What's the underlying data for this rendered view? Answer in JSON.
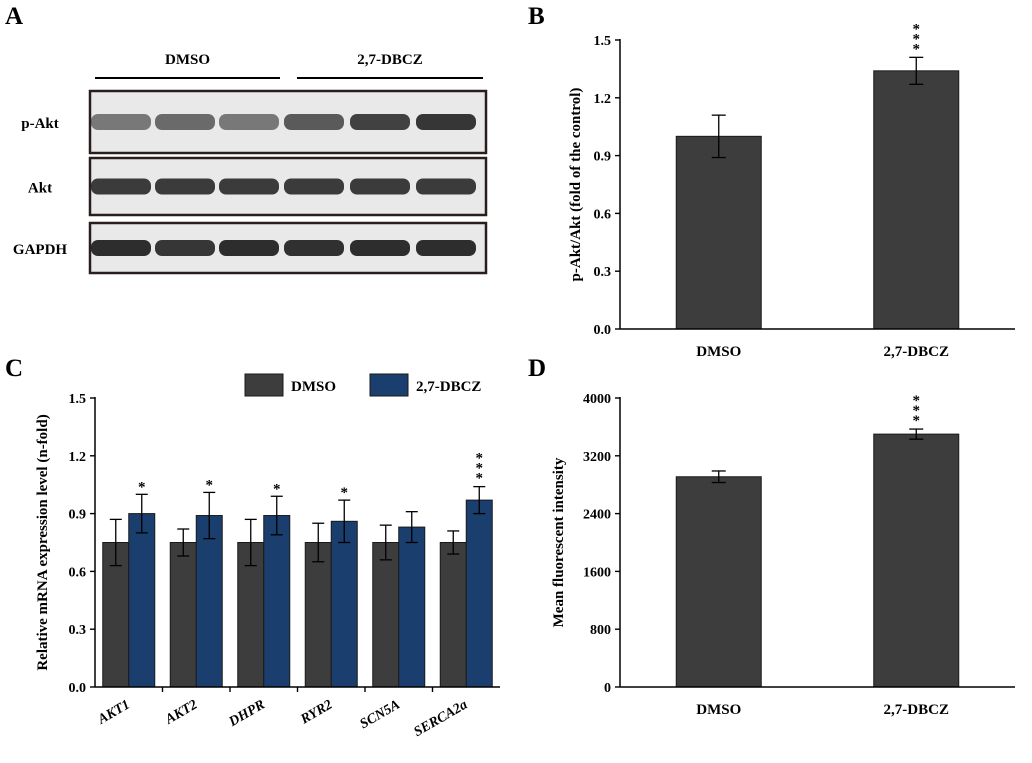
{
  "panels": {
    "A": "A",
    "B": "B",
    "C": "C",
    "D": "D"
  },
  "colors": {
    "dmso": "#3d3d3d",
    "dbcz": "#0f4470",
    "dbcz_c": "#1a3e6e",
    "blot_bg": "#e9e9e9",
    "band": "#1c1c1c"
  },
  "blot": {
    "groups": [
      "DMSO",
      "2,7-DBCZ"
    ],
    "rows": [
      {
        "label": "p-Akt",
        "intensities": [
          0.55,
          0.62,
          0.55,
          0.7,
          0.82,
          0.88
        ]
      },
      {
        "label": "Akt",
        "intensities": [
          0.85,
          0.85,
          0.85,
          0.85,
          0.85,
          0.85
        ]
      },
      {
        "label": "GAPDH",
        "intensities": [
          0.92,
          0.88,
          0.92,
          0.9,
          0.92,
          0.92
        ]
      }
    ]
  },
  "chart_data": [
    {
      "panel": "B",
      "type": "bar",
      "categories": [
        "DMSO",
        "2,7-DBCZ"
      ],
      "values": [
        1.0,
        1.34
      ],
      "errors": [
        0.11,
        0.07
      ],
      "significance": [
        "",
        "***"
      ],
      "ylabel": "p-Akt/Akt (fold of the control)",
      "ylim": [
        0,
        1.5
      ],
      "yticks": [
        "0.0",
        "0.3",
        "0.6",
        "0.9",
        "1.2",
        "1.5"
      ]
    },
    {
      "panel": "C",
      "type": "bar",
      "categories": [
        "AKT1",
        "AKT2",
        "DHPR",
        "RYR2",
        "SCN5A",
        "SERCA2a"
      ],
      "series": [
        {
          "name": "DMSO",
          "values": [
            0.75,
            0.75,
            0.75,
            0.75,
            0.75,
            0.75
          ],
          "errors": [
            0.12,
            0.07,
            0.12,
            0.1,
            0.09,
            0.06
          ]
        },
        {
          "name": "2,7-DBCZ",
          "values": [
            0.9,
            0.89,
            0.89,
            0.86,
            0.83,
            0.97
          ],
          "errors": [
            0.1,
            0.12,
            0.1,
            0.11,
            0.08,
            0.07
          ]
        }
      ],
      "significance": [
        "*",
        "*",
        "*",
        "*",
        "",
        "***"
      ],
      "ylabel": "Relative mRNA expression level (n-fold)",
      "ylim": [
        0,
        1.5
      ],
      "yticks": [
        "0.0",
        "0.3",
        "0.6",
        "0.9",
        "1.2",
        "1.5"
      ],
      "legend": "top-right"
    },
    {
      "panel": "D",
      "type": "bar",
      "categories": [
        "DMSO",
        "2,7-DBCZ"
      ],
      "values": [
        2910,
        3500
      ],
      "errors": [
        80,
        70
      ],
      "significance": [
        "",
        "***"
      ],
      "ylabel": "Mean fluorescent intensity",
      "ylim": [
        0,
        4000
      ],
      "yticks": [
        "0",
        "800",
        "1600",
        "2400",
        "3200",
        "4000"
      ]
    }
  ]
}
